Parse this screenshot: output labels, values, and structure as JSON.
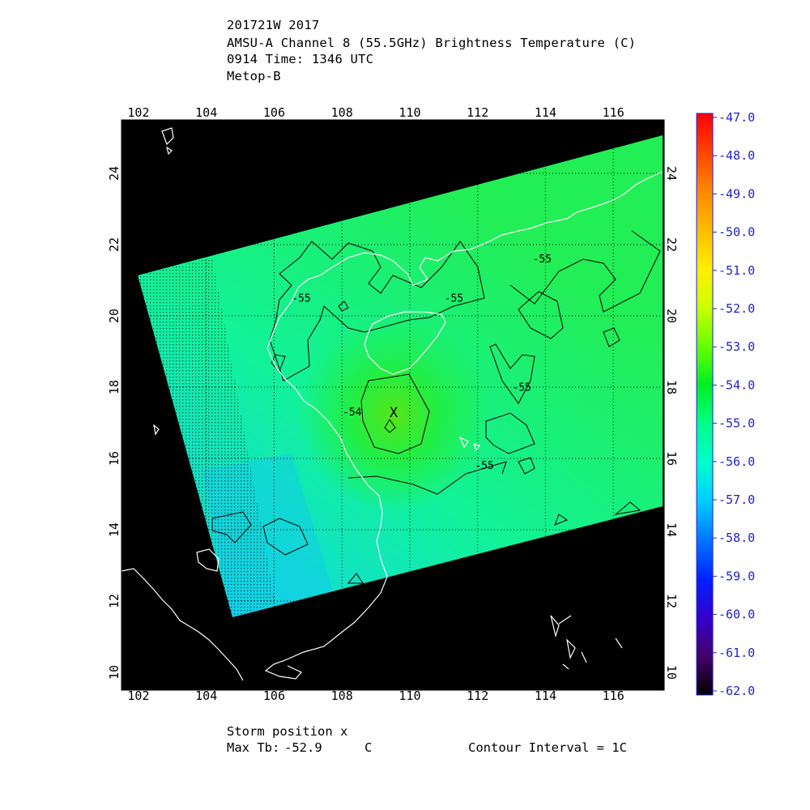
{
  "header": {
    "storm_id_year": "201721W 2017",
    "product": "AMSU-A Channel 8 (55.5GHz) Brightness Temperature (C)",
    "date_time": "0914 Time: 1346 UTC",
    "satellite": "Metop-B"
  },
  "map": {
    "lon_ticks": [
      "102",
      "104",
      "106",
      "108",
      "110",
      "112",
      "114",
      "116"
    ],
    "lat_ticks": [
      "10",
      "12",
      "14",
      "16",
      "18",
      "20",
      "22",
      "24"
    ],
    "storm_marker": "X",
    "background_color": "#000000",
    "coastline_color": "#ffffff",
    "contour_labels": [
      {
        "text": "-55",
        "lon": 106.8,
        "lat": 20.4
      },
      {
        "text": "-55",
        "lon": 111.3,
        "lat": 20.4
      },
      {
        "text": "-55",
        "lon": 113.9,
        "lat": 21.5
      },
      {
        "text": "-55",
        "lon": 113.3,
        "lat": 17.9
      },
      {
        "text": "-55",
        "lon": 112.2,
        "lat": 15.7
      },
      {
        "text": "-54",
        "lon": 108.3,
        "lat": 17.2
      }
    ]
  },
  "colorbar": {
    "labels": [
      "-47.0",
      "-48.0",
      "-49.0",
      "-50.0",
      "-51.0",
      "-52.0",
      "-53.0",
      "-54.0",
      "-55.0",
      "-56.0",
      "-57.0",
      "-58.0",
      "-59.0",
      "-60.0",
      "-61.0",
      "-62.0"
    ],
    "colors": [
      "#ff0000",
      "#ff4400",
      "#ff8800",
      "#ffbb00",
      "#ffee00",
      "#ccff00",
      "#66ff00",
      "#00ee22",
      "#00ff88",
      "#00ffcc",
      "#00ccff",
      "#0077ff",
      "#0022ff",
      "#3300cc",
      "#440066",
      "#000000"
    ]
  },
  "footer": {
    "storm_position": "Storm position x",
    "max_tb_label": "Max Tb:",
    "max_tb_value": "-52.9",
    "max_tb_unit": "C",
    "contour_interval": "Contour Interval = 1C"
  }
}
